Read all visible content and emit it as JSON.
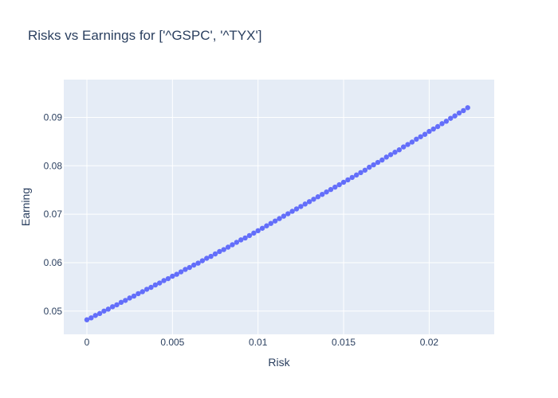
{
  "chart_data": {
    "type": "scatter",
    "title": "Risks vs Earnings for ['^GSPC', '^TYX']",
    "xlabel": "Risk",
    "ylabel": "Earning",
    "xlim": [
      -0.00135,
      0.0238
    ],
    "ylim": [
      0.0452,
      0.0978
    ],
    "x_ticks": [
      0,
      0.005,
      0.01,
      0.015,
      0.02
    ],
    "x_tick_labels": [
      "0",
      "0.005",
      "0.01",
      "0.015",
      "0.02"
    ],
    "y_ticks": [
      0.05,
      0.06,
      0.07,
      0.08,
      0.09
    ],
    "y_tick_labels": [
      "0.05",
      "0.06",
      "0.07",
      "0.08",
      "0.09"
    ],
    "grid": true,
    "colors": {
      "plot_bg": "#E5ECF6",
      "grid": "#FFFFFF",
      "marker": "#636EFA",
      "text": "#2A3F5F"
    },
    "series": [
      {
        "marker": "circle",
        "x": [
          0,
          0.00025,
          0.0005,
          0.00075,
          0.001,
          0.00125,
          0.0015,
          0.00175,
          0.002,
          0.00225,
          0.0025,
          0.00275,
          0.003,
          0.00325,
          0.0035,
          0.00375,
          0.004,
          0.00425,
          0.0045,
          0.00475,
          0.005,
          0.00525,
          0.0055,
          0.00575,
          0.006,
          0.00625,
          0.0065,
          0.00675,
          0.007,
          0.00725,
          0.0075,
          0.00775,
          0.008,
          0.00825,
          0.0085,
          0.00875,
          0.009,
          0.00925,
          0.0095,
          0.00975,
          0.01,
          0.01025,
          0.0105,
          0.01075,
          0.011,
          0.01125,
          0.0115,
          0.01175,
          0.012,
          0.01225,
          0.0125,
          0.01275,
          0.013,
          0.01325,
          0.0135,
          0.01375,
          0.014,
          0.01425,
          0.0145,
          0.01475,
          0.015,
          0.01525,
          0.0155,
          0.01575,
          0.016,
          0.01625,
          0.0165,
          0.01675,
          0.017,
          0.01725,
          0.0175,
          0.01775,
          0.018,
          0.01825,
          0.0185,
          0.01875,
          0.019,
          0.01925,
          0.0195,
          0.01975,
          0.02,
          0.02025,
          0.0205,
          0.02075,
          0.021,
          0.02125,
          0.0215,
          0.02175,
          0.022,
          0.02225
        ],
        "y": [
          0.0482,
          0.0486,
          0.0491,
          0.0495,
          0.05,
          0.0504,
          0.0509,
          0.0513,
          0.0518,
          0.0522,
          0.0527,
          0.0531,
          0.0536,
          0.054,
          0.0545,
          0.0549,
          0.0554,
          0.0558,
          0.0563,
          0.0567,
          0.0572,
          0.0576,
          0.0581,
          0.0586,
          0.059,
          0.0595,
          0.0599,
          0.0604,
          0.0609,
          0.0613,
          0.0618,
          0.0623,
          0.0627,
          0.0632,
          0.0637,
          0.0642,
          0.0647,
          0.0651,
          0.0656,
          0.0661,
          0.0666,
          0.0671,
          0.0676,
          0.0681,
          0.0686,
          0.0691,
          0.0696,
          0.0701,
          0.0706,
          0.0711,
          0.0716,
          0.0721,
          0.0726,
          0.0731,
          0.0736,
          0.0741,
          0.0746,
          0.0751,
          0.0756,
          0.0761,
          0.0766,
          0.0771,
          0.0776,
          0.0781,
          0.0786,
          0.0791,
          0.0797,
          0.0802,
          0.0807,
          0.0812,
          0.0818,
          0.0823,
          0.0828,
          0.0833,
          0.0839,
          0.0844,
          0.0849,
          0.0855,
          0.086,
          0.0865,
          0.0871,
          0.0876,
          0.0881,
          0.0887,
          0.0892,
          0.0898,
          0.0903,
          0.0909,
          0.0914,
          0.092
        ]
      }
    ]
  }
}
